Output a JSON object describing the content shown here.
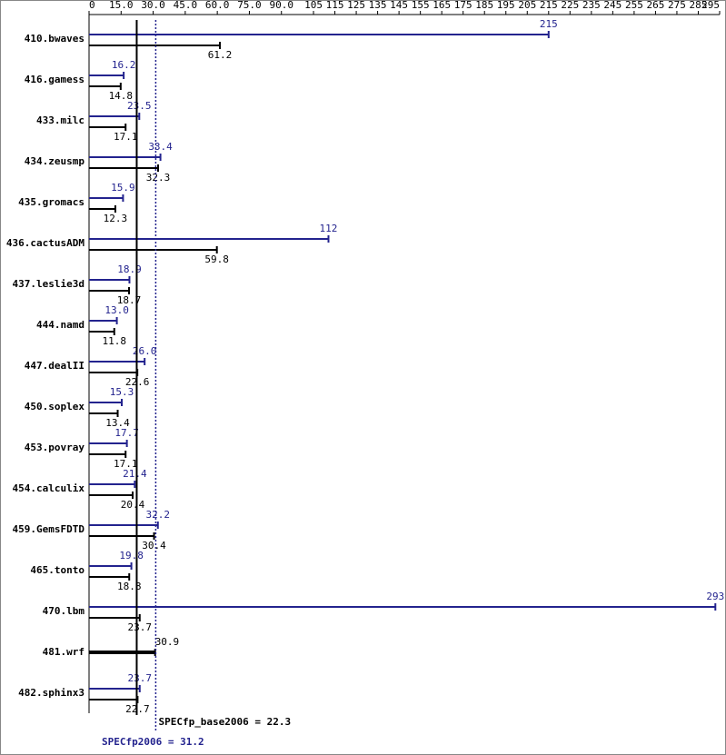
{
  "chart_data": {
    "type": "hbar",
    "categories": [
      "410.bwaves",
      "416.gamess",
      "433.milc",
      "434.zeusmp",
      "435.gromacs",
      "436.cactusADM",
      "437.leslie3d",
      "444.namd",
      "447.dealII",
      "450.soplex",
      "453.povray",
      "454.calculix",
      "459.GemsFDTD",
      "465.tonto",
      "470.lbm",
      "481.wrf",
      "482.sphinx3"
    ],
    "series": [
      {
        "name": "SPECfp2006",
        "color": "#23238e",
        "values": [
          215,
          16.2,
          23.5,
          33.4,
          15.9,
          112,
          18.9,
          13.0,
          26.0,
          15.3,
          17.7,
          21.4,
          32.2,
          19.8,
          293,
          null,
          23.7
        ],
        "value_labels": [
          "215",
          "16.2",
          "23.5",
          "33.4",
          "15.9",
          "112",
          "18.9",
          "13.0",
          "26.0",
          "15.3",
          "17.7",
          "21.4",
          "32.2",
          "19.8",
          "293",
          null,
          "23.7"
        ]
      },
      {
        "name": "SPECfp_base2006",
        "color": "#000000",
        "values": [
          61.2,
          14.8,
          17.1,
          32.3,
          12.3,
          59.8,
          18.7,
          11.8,
          22.6,
          13.4,
          17.1,
          20.4,
          30.4,
          18.8,
          23.7,
          30.9,
          22.7
        ],
        "value_labels": [
          "61.2",
          "14.8",
          "17.1",
          "32.3",
          "12.3",
          "59.8",
          "18.7",
          "11.8",
          "22.6",
          "13.4",
          "17.1",
          "20.4",
          "30.4",
          "18.8",
          "23.7",
          "30.9",
          "22.7"
        ]
      }
    ],
    "xlim": [
      0,
      295
    ],
    "xticks": [
      0,
      {
        "value": 15,
        "label": "15.0"
      },
      {
        "value": 30,
        "label": "30.0"
      },
      {
        "value": 45,
        "label": "45.0"
      },
      {
        "value": 60,
        "label": "60.0"
      },
      {
        "value": 75,
        "label": "75.0"
      },
      {
        "value": 90,
        "label": "90.0"
      },
      105,
      115,
      125,
      135,
      145,
      155,
      165,
      175,
      185,
      195,
      205,
      215,
      225,
      235,
      245,
      255,
      265,
      275,
      285,
      295
    ],
    "reference_lines": [
      {
        "value": 22.3,
        "label": "SPECfp_base2006 = 22.3",
        "color": "#000000"
      },
      {
        "value": 31.2,
        "label": "SPECfp2006 = 31.2",
        "color": "#23238e"
      }
    ]
  }
}
